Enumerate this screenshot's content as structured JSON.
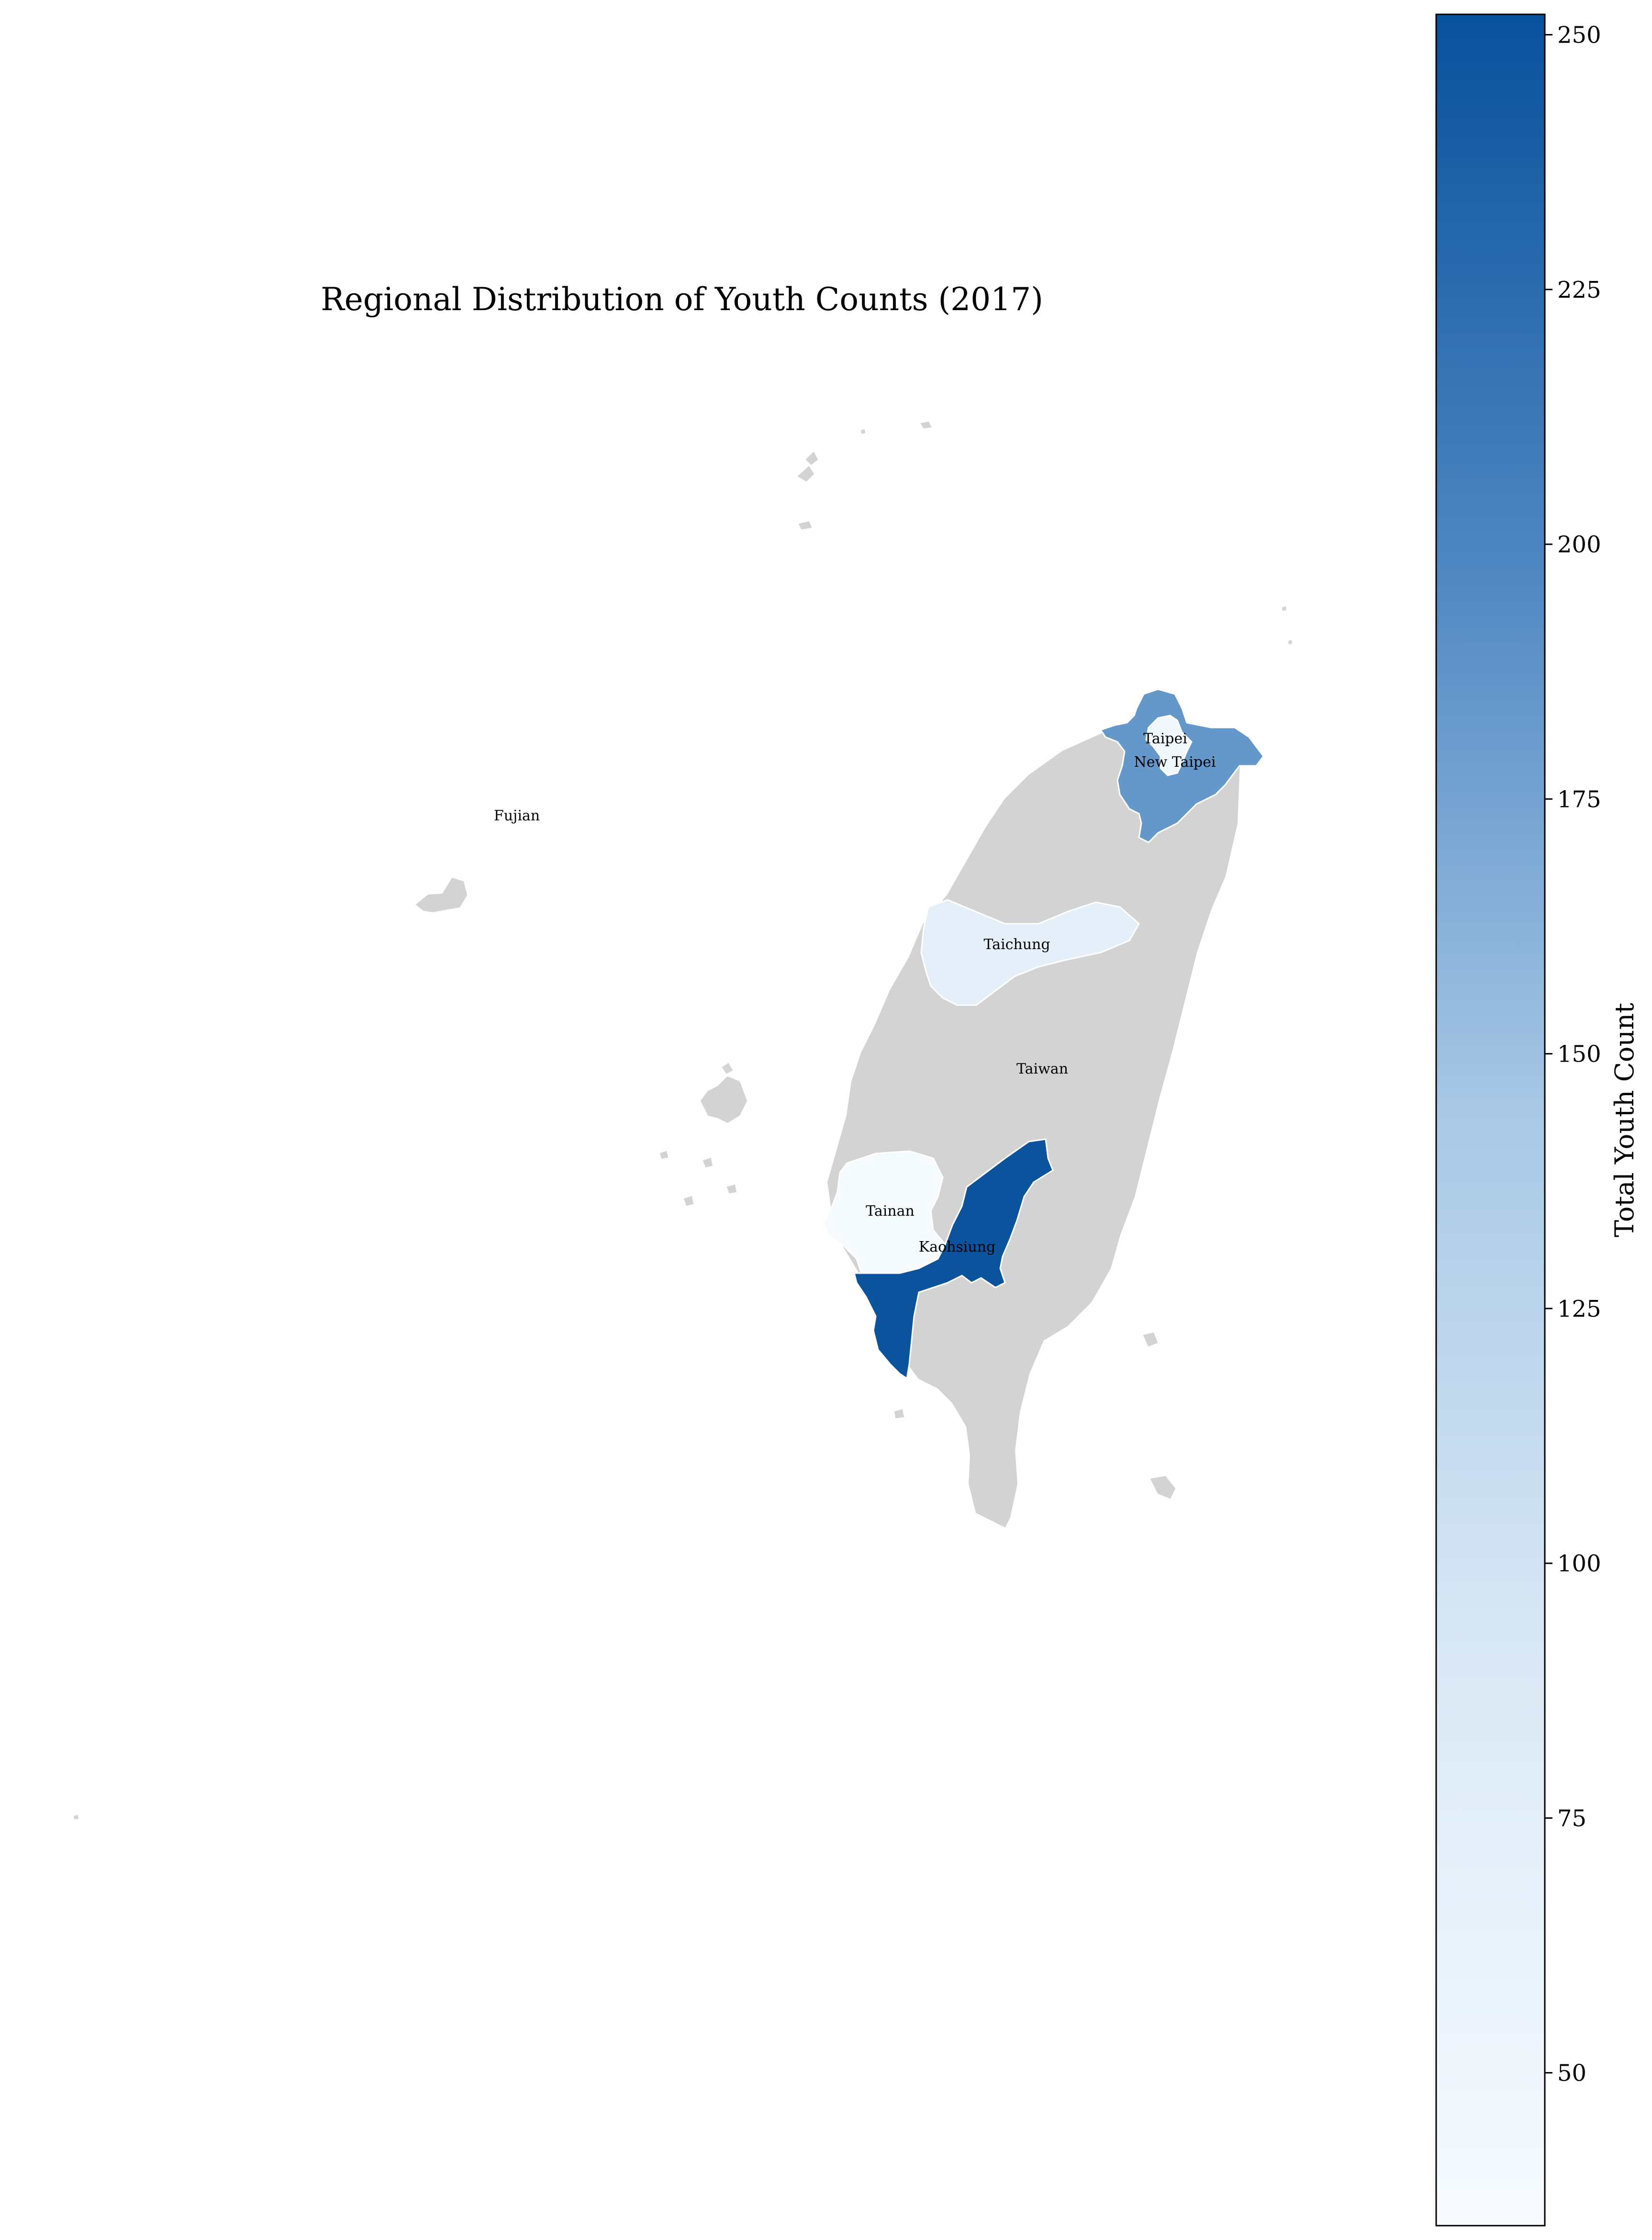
{
  "title": "Regional Distribution of Youth Counts (2017)",
  "colorbar": {
    "label": "Total Youth Count",
    "min": 35,
    "max": 252,
    "ticks": [
      50,
      75,
      100,
      125,
      150,
      175,
      200,
      225,
      250
    ],
    "color_low": "#f7fbff",
    "color_high": "#08519c"
  },
  "colors": {
    "no_data": "#d3d3d3",
    "border": "#ffffff",
    "text": "#000000"
  },
  "regions": [
    {
      "name": "Taiwan",
      "value": null
    },
    {
      "name": "Fujian",
      "value": null
    },
    {
      "name": "Taichung",
      "value": 72
    },
    {
      "name": "Tainan",
      "value": 38
    },
    {
      "name": "Kaohsiung",
      "value": 250
    },
    {
      "name": "New Taipei",
      "value": 185
    },
    {
      "name": "Taipei",
      "value": 48
    }
  ]
}
